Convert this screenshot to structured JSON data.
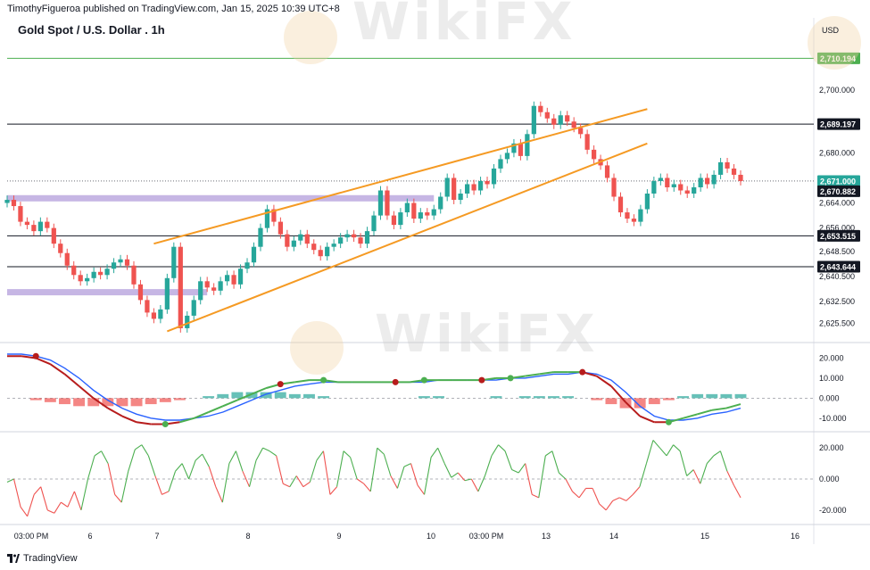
{
  "header": {
    "publisher_line": "TimothyFigueroa published on TradingView.com, Jan 15, 2025 10:39 UTC+8",
    "title": "Gold Spot / U.S. Dollar . 1h",
    "currency": "USD"
  },
  "footer": {
    "brand": "TradingView"
  },
  "watermark": {
    "text": "WikiFX"
  },
  "colors": {
    "up": "#26a69a",
    "down": "#ef5350",
    "channel": "#f59a23",
    "zone": "#b39ddb",
    "macd_dark": "#b71c1c",
    "macd_blue": "#2962ff",
    "macd_green": "#4caf50",
    "hist_up": "#26a69a",
    "hist_down": "#ef5350",
    "osc_up": "#4caf50",
    "osc_down": "#ef5350"
  },
  "chart_data": {
    "type": "candlestick",
    "title": "Gold Spot / U.S. Dollar . 1h",
    "x_ticks": [
      "03:00 PM",
      "6",
      "7",
      "8",
      "9",
      "10",
      "03:00 PM",
      "13",
      "14",
      "15",
      "16"
    ],
    "price_panel": {
      "ylim": [
        2620,
        2716
      ],
      "y_ticks": [
        "2,700.000",
        "2,680.000",
        "2,671.000",
        "2,664.000",
        "2,656.000",
        "2,648.500",
        "2,640.500",
        "2,632.500",
        "2,625.500"
      ],
      "price_labels": [
        {
          "value": 2710.194,
          "label": "2,710.194",
          "style": "green-line"
        },
        {
          "value": 2689.197,
          "label": "2,689.197",
          "style": "black-line"
        },
        {
          "value": 2671.0,
          "label": "2,671.000",
          "style": "current"
        },
        {
          "value": 2670.882,
          "label": "2,670.882",
          "style": "dark"
        },
        {
          "value": 2653.515,
          "label": "2,653.515",
          "style": "black-line"
        },
        {
          "value": 2643.644,
          "label": "2,643.644",
          "style": "black-line"
        }
      ],
      "zones": [
        {
          "from_index": 0,
          "to_index": 64,
          "low": 2664.5,
          "high": 2666.5
        },
        {
          "from_index": 0,
          "to_index": 30,
          "low": 2634.5,
          "high": 2636.5
        }
      ],
      "channel": {
        "upper": [
          [
            22,
            2651
          ],
          [
            96,
            2694
          ]
        ],
        "lower": [
          [
            24,
            2623
          ],
          [
            96,
            2683
          ]
        ]
      },
      "closes": [
        2665,
        2663,
        2658,
        2657,
        2655,
        2658,
        2656,
        2651,
        2648,
        2644,
        2641,
        2639,
        2640,
        2642,
        2641,
        2643,
        2645,
        2646,
        2644,
        2638,
        2633,
        2629,
        2627,
        2630,
        2640,
        2650,
        2624,
        2628,
        2633,
        2639,
        2637,
        2636,
        2639,
        2641,
        2638,
        2643,
        2645,
        2650,
        2656,
        2662,
        2658,
        2654,
        2650,
        2652,
        2654,
        2651,
        2649,
        2647,
        2650,
        2651,
        2653,
        2654,
        2653,
        2651,
        2655,
        2660,
        2668,
        2660,
        2657,
        2661,
        2664,
        2659,
        2661,
        2660,
        2662,
        2666,
        2672,
        2665,
        2667,
        2670,
        2668,
        2671,
        2670,
        2675,
        2678,
        2680,
        2683,
        2679,
        2686,
        2695,
        2693,
        2691,
        2689,
        2692,
        2690,
        2688,
        2686,
        2681,
        2678,
        2676,
        2672,
        2666,
        2661,
        2659,
        2658,
        2662,
        2667,
        2671,
        2672,
        2669,
        2670,
        2668,
        2667,
        2669,
        2672,
        2670,
        2673,
        2677,
        2675,
        2673,
        2671
      ]
    },
    "macd_panel": {
      "ylim": [
        -15,
        26
      ],
      "y_ticks": [
        "20.000",
        "10.000",
        "0.000",
        "-10.000"
      ],
      "line_a": [
        21,
        21,
        20,
        17,
        12,
        6,
        0,
        -5,
        -9,
        -12,
        -13,
        -13,
        -12,
        -10,
        -7,
        -4,
        -1,
        2,
        5,
        7,
        8,
        9,
        9,
        8,
        8,
        8,
        8,
        8,
        8,
        9,
        9,
        9,
        9,
        9,
        10,
        10,
        11,
        12,
        13,
        13,
        13,
        11,
        6,
        -2,
        -9,
        -12,
        -12,
        -10,
        -8,
        -6,
        -5,
        -3
      ],
      "line_b": [
        22,
        22,
        21,
        19,
        15,
        10,
        4,
        -1,
        -5,
        -8,
        -10,
        -11,
        -11,
        -10,
        -9,
        -7,
        -4,
        -1,
        2,
        4,
        6,
        7,
        8,
        8,
        8,
        8,
        8,
        8,
        8,
        8,
        9,
        9,
        9,
        9,
        9,
        10,
        10,
        11,
        12,
        12,
        13,
        12,
        9,
        3,
        -4,
        -9,
        -11,
        -11,
        -10,
        -8,
        -7,
        -5
      ],
      "histogram": [
        0,
        0,
        -1,
        -2,
        -3,
        -4,
        -4,
        -4,
        -4,
        -4,
        -3,
        -2,
        -1,
        0,
        1,
        2,
        3,
        3,
        3,
        3,
        2,
        2,
        1,
        0,
        0,
        0,
        0,
        0,
        0,
        1,
        1,
        0,
        0,
        0,
        1,
        0,
        1,
        1,
        1,
        1,
        0,
        -1,
        -3,
        -5,
        -5,
        -3,
        -1,
        1,
        2,
        2,
        2,
        2
      ],
      "markers": [
        {
          "index": 2,
          "value": 21,
          "kind": "bearish"
        },
        {
          "index": 11,
          "value": -13,
          "kind": "bullish"
        },
        {
          "index": 19,
          "value": 7,
          "kind": "bearish"
        },
        {
          "index": 22,
          "value": 9,
          "kind": "bullish"
        },
        {
          "index": 27,
          "value": 8,
          "kind": "bearish"
        },
        {
          "index": 29,
          "value": 9,
          "kind": "bullish"
        },
        {
          "index": 33,
          "value": 9,
          "kind": "bearish"
        },
        {
          "index": 35,
          "value": 10,
          "kind": "bullish"
        },
        {
          "index": 40,
          "value": 13,
          "kind": "bearish"
        },
        {
          "index": 46,
          "value": -12,
          "kind": "bullish"
        }
      ]
    },
    "oscillator_panel": {
      "ylim": [
        -27,
        27
      ],
      "y_ticks": [
        "20.000",
        "0.000",
        "-20.000"
      ],
      "values": [
        -2,
        0,
        -18,
        -24,
        -10,
        -5,
        -20,
        -22,
        -15,
        -18,
        -8,
        -20,
        0,
        15,
        18,
        10,
        -10,
        -15,
        5,
        19,
        22,
        15,
        2,
        -10,
        -8,
        5,
        10,
        0,
        12,
        16,
        8,
        -5,
        -15,
        10,
        18,
        5,
        -5,
        12,
        20,
        18,
        15,
        -3,
        -5,
        2,
        -5,
        -2,
        12,
        18,
        -10,
        -5,
        18,
        14,
        0,
        -3,
        -8,
        20,
        16,
        2,
        -6,
        8,
        10,
        -4,
        -10,
        14,
        20,
        10,
        1,
        4,
        -1,
        0,
        -8,
        2,
        15,
        22,
        18,
        6,
        4,
        10,
        -10,
        -12,
        15,
        18,
        4,
        0,
        -8,
        -12,
        -6,
        -6,
        -16,
        -20,
        -14,
        -12,
        -14,
        -10,
        -5,
        10,
        25,
        20,
        15,
        22,
        18,
        2,
        6,
        -3,
        10,
        15,
        18,
        5,
        -4,
        -12
      ]
    }
  }
}
